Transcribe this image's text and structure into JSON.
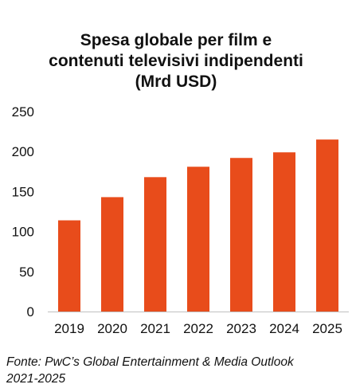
{
  "chart_data": {
    "type": "bar",
    "title_lines": [
      "Spesa globale per film e",
      "contenuti televisivi indipendenti",
      "(Mrd USD)"
    ],
    "categories": [
      "2019",
      "2020",
      "2021",
      "2022",
      "2023",
      "2024",
      "2025"
    ],
    "values": [
      114,
      143,
      168,
      181,
      192,
      199,
      215
    ],
    "ylim": [
      0,
      250
    ],
    "yticks": [
      0,
      50,
      100,
      150,
      200,
      250
    ],
    "bar_color": "#E84C1B",
    "axis_color": "#bfbfbf",
    "grid": false
  },
  "source_lines": [
    "Fonte: PwC’s Global Entertainment & Media Outlook",
    "2021-2025"
  ]
}
